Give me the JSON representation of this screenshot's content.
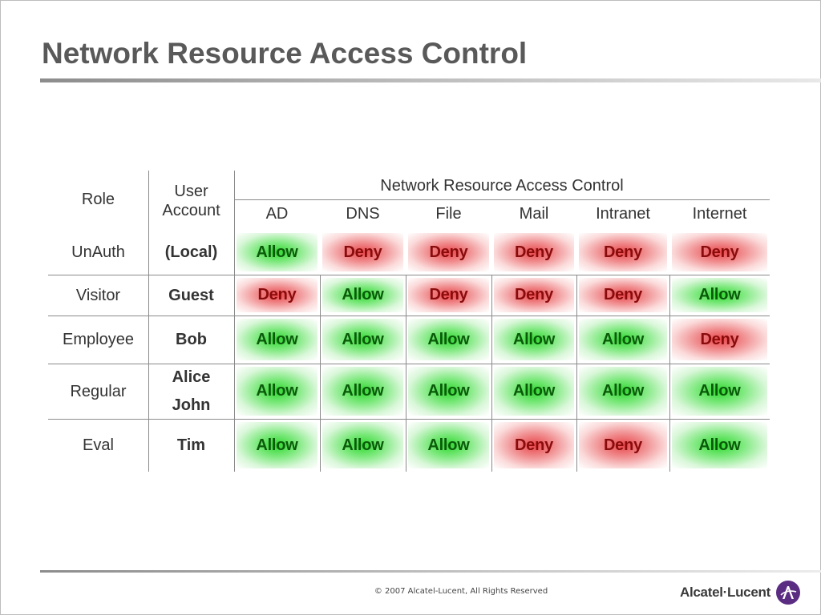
{
  "slide": {
    "title": "Network Resource Access Control",
    "footer": "© 2007 Alcatel-Lucent, All Rights Reserved",
    "logo_text": "Alcatel·Lucent"
  },
  "table": {
    "header": {
      "role": "Role",
      "user_account_line1": "User",
      "user_account_line2": "Account",
      "group": "Network Resource Access Control",
      "columns": [
        "AD",
        "DNS",
        "File",
        "Mail",
        "Intranet",
        "Internet"
      ]
    },
    "rows": [
      {
        "role": "UnAuth",
        "users": [
          "(Local)"
        ],
        "perms": [
          "Allow",
          "Deny",
          "Deny",
          "Deny",
          "Deny",
          "Deny"
        ]
      },
      {
        "role": "Visitor",
        "users": [
          "Guest"
        ],
        "perms": [
          "Deny",
          "Allow",
          "Deny",
          "Deny",
          "Deny",
          "Allow"
        ]
      },
      {
        "role": "Employee",
        "users": [
          "Bob"
        ],
        "perms": [
          "Allow",
          "Allow",
          "Allow",
          "Allow",
          "Allow",
          "Deny"
        ]
      },
      {
        "role": "Regular",
        "users": [
          "Alice",
          "John"
        ],
        "perms": [
          "Allow",
          "Allow",
          "Allow",
          "Allow",
          "Allow",
          "Allow"
        ]
      },
      {
        "role": "Eval",
        "users": [
          "Tim"
        ],
        "perms": [
          "Allow",
          "Allow",
          "Allow",
          "Deny",
          "Deny",
          "Allow"
        ]
      }
    ]
  },
  "colors": {
    "allow": "#2fd82f",
    "deny": "#e8464a",
    "title": "#595959"
  }
}
